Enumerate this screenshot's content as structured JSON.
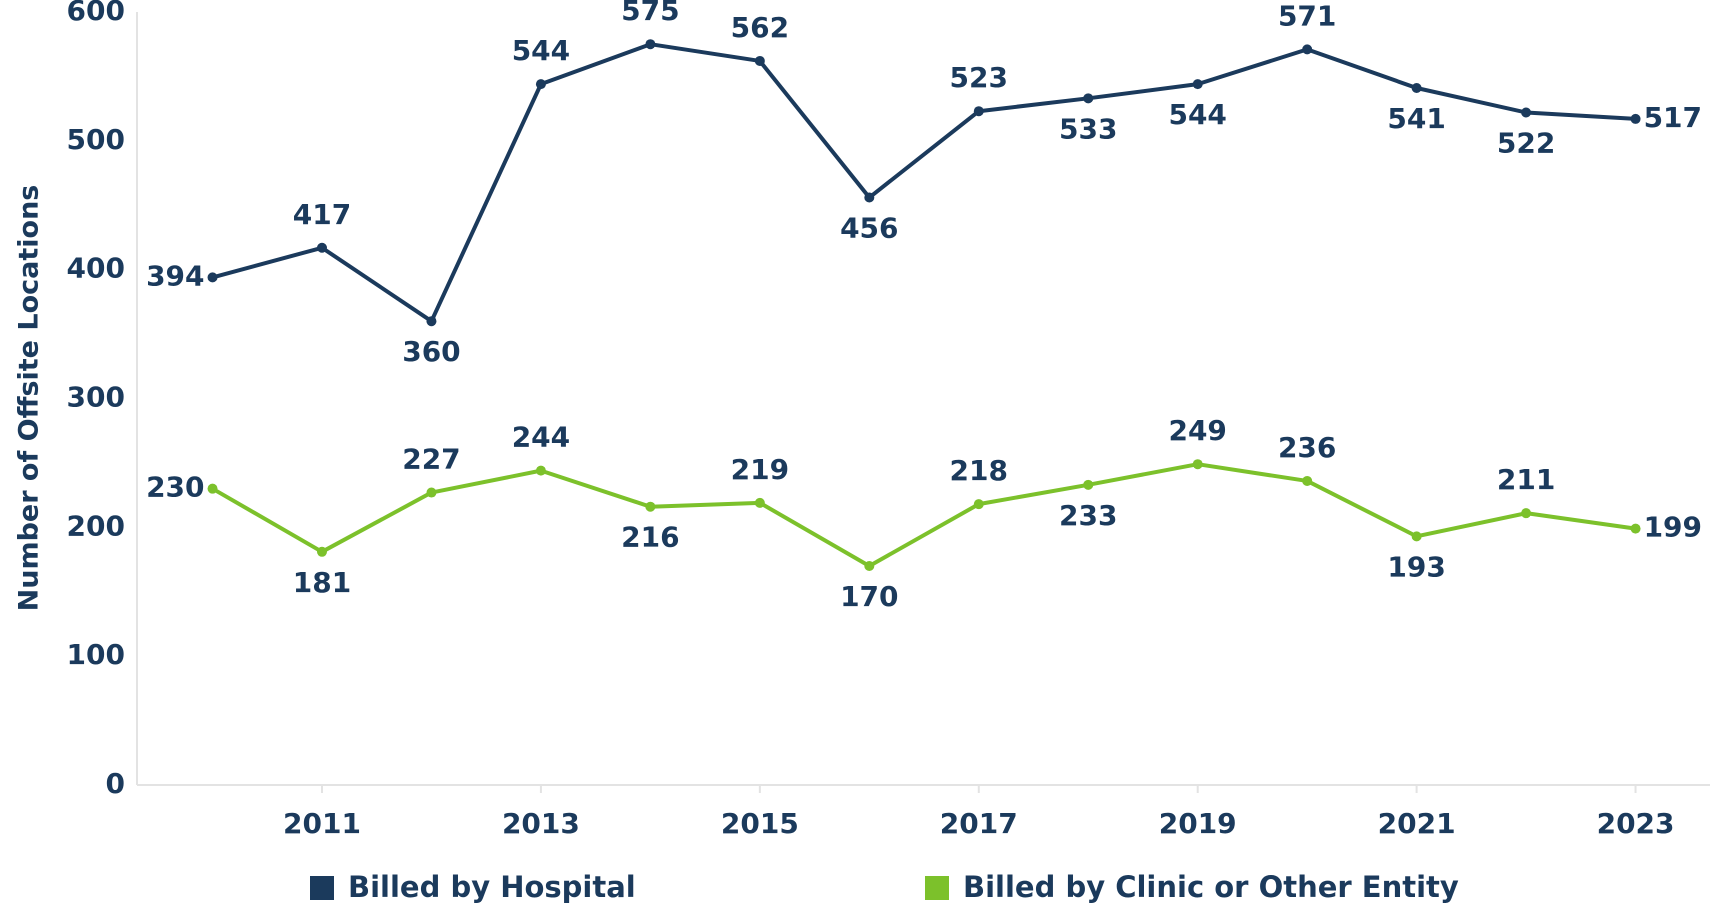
{
  "chart_data": {
    "type": "line",
    "y_label": "Number of Offsite Locations",
    "x": [
      2010,
      2011,
      2012,
      2013,
      2014,
      2015,
      2016,
      2017,
      2018,
      2019,
      2020,
      2021,
      2022,
      2023
    ],
    "series": [
      {
        "name": "Billed by Hospital",
        "color": "#1b3a5c",
        "values": [
          394,
          417,
          360,
          544,
          575,
          562,
          456,
          523,
          533,
          544,
          571,
          541,
          522,
          517
        ]
      },
      {
        "name": "Billed by Clinic or Other Entity",
        "color": "#7cc12b",
        "values": [
          230,
          181,
          227,
          244,
          216,
          219,
          170,
          218,
          233,
          249,
          236,
          193,
          211,
          199
        ]
      }
    ],
    "xlim": [
      2009.31,
      2023.68
    ],
    "xticks": [
      2011,
      2013,
      2015,
      2017,
      2019,
      2021,
      2023
    ],
    "ylim": [
      0,
      600
    ],
    "yticks": [
      0,
      100,
      200,
      300,
      400,
      500,
      600
    ],
    "grid": false,
    "legend": "bottom"
  }
}
